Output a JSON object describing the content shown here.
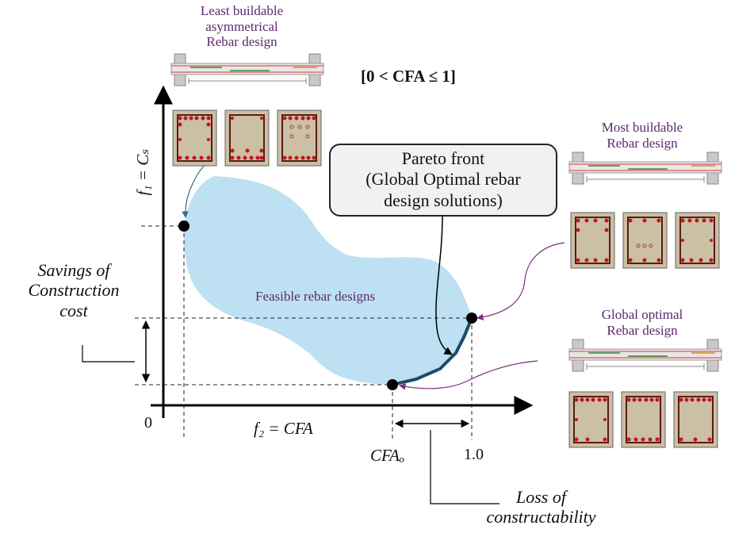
{
  "texts": {
    "least_buildable": [
      "Least buildable",
      "asymmetrical",
      "Rebar design"
    ],
    "cfa_range": "[0 < CFA ≤ 1]",
    "most_buildable": [
      "Most buildable",
      "Rebar design"
    ],
    "global_optimal": [
      "Global optimal",
      "Rebar design"
    ],
    "pareto_front": [
      "Pareto front",
      "(Global Optimal rebar",
      "design solutions)"
    ],
    "feasible_region": "Feasible rebar designs",
    "savings": [
      "Savings of",
      "Construction",
      "cost"
    ],
    "loss": [
      "Loss of",
      "constructability"
    ],
    "y_axis_label": "f₁ = Cₛ",
    "x_axis_label": "f₂ = CFA",
    "origin": "0",
    "cfa_o": "CFAₒ",
    "one": "1.0"
  },
  "colors": {
    "feasible_fill": "#bde0f2",
    "pareto_line": "#1b4b6b",
    "purple_text": "#5b2a6e",
    "arrow_teal": "#2b6f8a",
    "arrow_purple": "#7a2d7e",
    "concrete": "#cbbfa4",
    "rebar": "#c0161b"
  }
}
